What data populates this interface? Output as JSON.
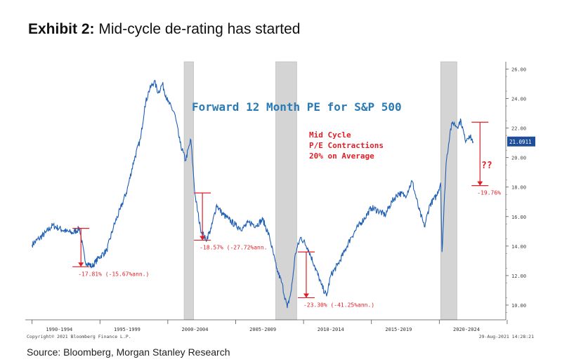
{
  "exhibit": {
    "number": "Exhibit 2:",
    "title": "Mid-cycle de-rating has started"
  },
  "chart_data": {
    "type": "line",
    "title": "Forward 12 Month PE for S&P 500",
    "annotation": "Mid Cycle\nP/E Contractions\n20% on Average",
    "question_marks": "??",
    "current_value_label": "21.0911",
    "ylim": [
      9,
      26.5
    ],
    "yticks": [
      "26.00",
      "24.00",
      "22.00",
      "20.00",
      "18.00",
      "16.00",
      "14.00",
      "12.00",
      "10.00"
    ],
    "ytick_values": [
      26,
      24,
      22,
      20,
      18,
      16,
      14,
      12,
      10
    ],
    "xlim": [
      1989.5,
      2024.9
    ],
    "x_period_labels": [
      {
        "label": "1990-1994",
        "x": 1992
      },
      {
        "label": "1995-1999",
        "x": 1997
      },
      {
        "label": "2000-2004",
        "x": 2002
      },
      {
        "label": "2005-2009",
        "x": 2007
      },
      {
        "label": "2010-2014",
        "x": 2012
      },
      {
        "label": "2015-2019",
        "x": 2017
      },
      {
        "label": "2020-2024",
        "x": 2022
      }
    ],
    "recessions": [
      [
        2001.2,
        2001.9
      ],
      [
        2007.95,
        2009.5
      ],
      [
        2020.1,
        2021.3
      ]
    ],
    "series": [
      {
        "color": "#1f5fb4",
        "x": [
          1990.0,
          1990.5,
          1991.0,
          1991.5,
          1992.0,
          1992.5,
          1993.0,
          1993.5,
          1993.9,
          1994.4,
          1994.9,
          1995.5,
          1996.0,
          1996.5,
          1997.0,
          1997.5,
          1998.0,
          1998.3,
          1998.6,
          1999.0,
          1999.3,
          1999.6,
          2000.0,
          2000.5,
          2000.9,
          2001.3,
          2001.7,
          2002.0,
          2002.4,
          2002.8,
          2003.2,
          2003.6,
          2004.0,
          2004.5,
          2005.0,
          2005.5,
          2006.0,
          2006.5,
          2007.0,
          2007.5,
          2008.0,
          2008.4,
          2008.8,
          2009.1,
          2009.4,
          2009.8,
          2010.3,
          2010.8,
          2011.3,
          2011.7,
          2012.0,
          2012.5,
          2013.0,
          2013.5,
          2014.0,
          2014.5,
          2015.0,
          2015.5,
          2016.0,
          2016.5,
          2017.0,
          2017.5,
          2018.0,
          2018.5,
          2018.9,
          2019.3,
          2019.8,
          2020.1,
          2020.2,
          2020.5,
          2020.8,
          2021.0,
          2021.3,
          2021.6,
          2021.9,
          2022.2,
          2022.5
        ],
        "values": [
          14.1,
          14.5,
          14.9,
          15.4,
          15.2,
          15.0,
          14.9,
          15.2,
          13.0,
          12.6,
          13.2,
          13.7,
          15.3,
          16.5,
          17.8,
          19.8,
          21.3,
          23.5,
          24.5,
          25.2,
          24.4,
          25.0,
          23.8,
          23.0,
          21.0,
          19.8,
          21.2,
          17.5,
          15.2,
          14.4,
          15.2,
          16.8,
          16.2,
          15.8,
          15.4,
          15.2,
          15.6,
          15.4,
          15.8,
          14.6,
          12.5,
          11.5,
          9.8,
          11.0,
          13.5,
          14.6,
          13.9,
          12.7,
          11.4,
          10.6,
          12.0,
          12.7,
          13.6,
          14.6,
          15.3,
          15.9,
          16.6,
          16.4,
          16.1,
          17.0,
          17.6,
          17.4,
          18.4,
          16.5,
          15.3,
          16.8,
          17.4,
          18.3,
          13.6,
          19.6,
          21.8,
          22.4,
          22.1,
          22.5,
          21.2,
          21.5,
          21.1
        ]
      }
    ],
    "drawdowns": [
      {
        "x": 1993.6,
        "top": 15.2,
        "bottom": 12.6,
        "label": "-17.81% (-15.67%ann.)"
      },
      {
        "x": 2002.55,
        "top": 17.6,
        "bottom": 14.4,
        "label": "-18.57% (-27.72%ann."
      },
      {
        "x": 2010.2,
        "top": 13.6,
        "bottom": 10.5,
        "label": "-23.30% (-41.25%ann.)"
      },
      {
        "x": 2023.0,
        "top": 22.4,
        "bottom": 18.1,
        "label": "-19.76%"
      }
    ],
    "footer_left": "Copyright© 2021 Bloomberg Finance L.P.",
    "footer_right": "29-Aug-2021 14:28:21"
  },
  "source": "Source: Bloomberg, Morgan Stanley Research"
}
